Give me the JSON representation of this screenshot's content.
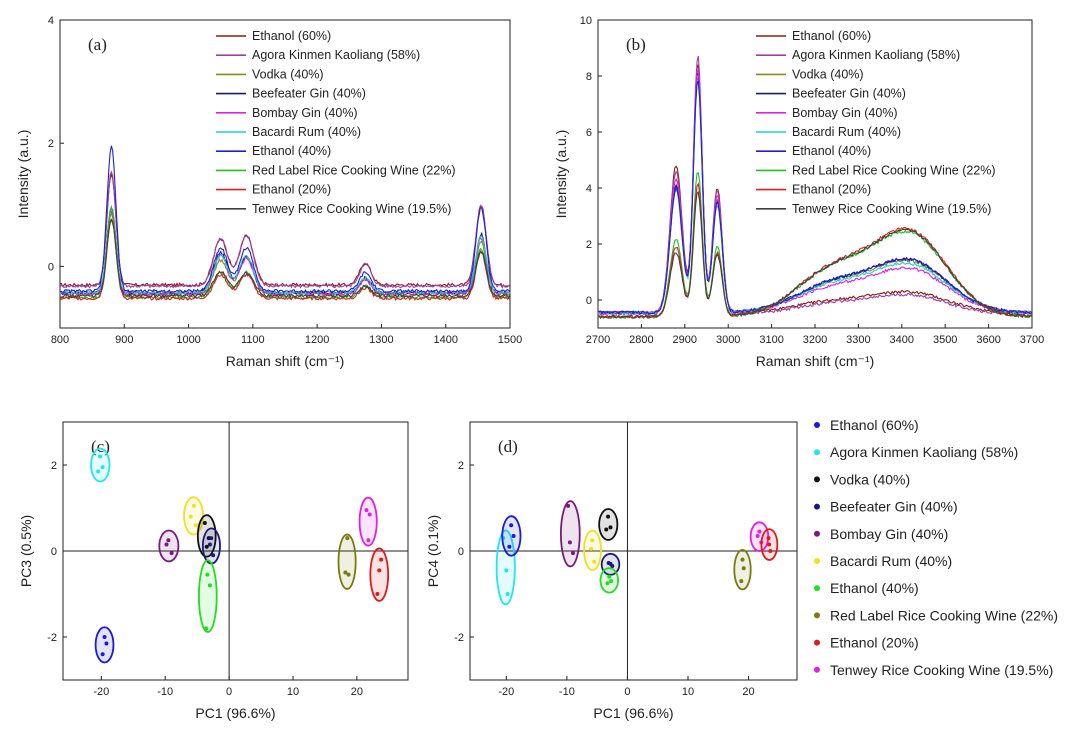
{
  "figure": {
    "series_colors": {
      "Ethanol (60%)": "#8b1a1a",
      "Agora Kinmen Kaoliang (58%)": "#a040a0",
      "Vodka (40%)": "#8a8a1a",
      "Beefeater Gin (40%)": "#1a1a6e",
      "Bombay Gin (40%)": "#e020e0",
      "Bacardi Rum (40%)": "#20d0d0",
      "Ethanol (40%)": "#2020d0",
      "Red Label Rice Cooking Wine (22%)": "#20c020",
      "Ethanol (20%)": "#e02020",
      "Tenwey Rice Cooking Wine (19.5%)": "#404040"
    },
    "pca_colors": {
      "Ethanol (60%)": "#1a1adc",
      "Agora Kinmen Kaoliang (58%)": "#22e6ee",
      "Vodka (40%)": "#111111",
      "Beefeater Gin (40%)": "#1a1a7a",
      "Bombay Gin (40%)": "#7a1a7a",
      "Bacardi Rum (40%)": "#f0e020",
      "Ethanol (40%)": "#22dd22",
      "Red Label Rice Cooking Wine (22%)": "#7a7a10",
      "Ethanol (20%)": "#e01a1a",
      "Tenwey Rice Cooking Wine (19.5%)": "#e020e0"
    }
  },
  "chart_data": [
    {
      "panel": "(a)",
      "type": "line",
      "xlabel": "Raman shift (cm⁻¹)",
      "ylabel": "Intensity (a.u.)",
      "xlim": [
        800,
        1500
      ],
      "ylim": [
        -1.0,
        4.0
      ],
      "xticks": [
        800,
        900,
        1000,
        1100,
        1200,
        1300,
        1400,
        1500
      ],
      "yticks": [
        0,
        2,
        4
      ],
      "legend_position": "top-right",
      "legend": [
        "Ethanol (60%)",
        "Agora Kinmen Kaoliang (58%)",
        "Vodka (40%)",
        "Beefeater Gin (40%)",
        "Bombay Gin (40%)",
        "Bacardi Rum (40%)",
        "Ethanol (40%)",
        "Red Label Rice Cooking Wine (22%)",
        "Ethanol (20%)",
        "Tenwey Rice Cooking Wine (19.5%)"
      ],
      "peak_positions": [
        880,
        1050,
        1090,
        1275,
        1455
      ],
      "series": [
        {
          "name": "Ethanol (60%)",
          "baseline": -0.3,
          "peaks": [
            1.8,
            0.75,
            0.8,
            0.35,
            1.3
          ]
        },
        {
          "name": "Agora Kinmen Kaoliang (58%)",
          "baseline": -0.32,
          "peaks": [
            1.85,
            0.78,
            0.82,
            0.36,
            1.3
          ]
        },
        {
          "name": "Vodka (40%)",
          "baseline": -0.45,
          "peaks": [
            1.3,
            0.55,
            0.6,
            0.25,
            0.85
          ]
        },
        {
          "name": "Beefeater Gin (40%)",
          "baseline": -0.43,
          "peaks": [
            1.4,
            0.65,
            0.58,
            0.24,
            0.95
          ]
        },
        {
          "name": "Bombay Gin (40%)",
          "baseline": -0.44,
          "peaks": [
            1.35,
            0.62,
            0.57,
            0.22,
            0.9
          ]
        },
        {
          "name": "Bacardi Rum (40%)",
          "baseline": -0.42,
          "peaks": [
            1.38,
            0.6,
            0.6,
            0.23,
            0.92
          ]
        },
        {
          "name": "Ethanol (40%)",
          "baseline": -0.4,
          "peaks": [
            2.35,
            0.7,
            0.7,
            0.3,
            1.35
          ]
        },
        {
          "name": "Red Label Rice Cooking Wine (22%)",
          "baseline": -0.5,
          "peaks": [
            1.45,
            0.4,
            0.4,
            0.18,
            0.8
          ]
        },
        {
          "name": "Ethanol (20%)",
          "baseline": -0.52,
          "peaks": [
            1.3,
            0.38,
            0.38,
            0.17,
            0.75
          ]
        },
        {
          "name": "Tenwey Rice Cooking Wine (19.5%)",
          "baseline": -0.48,
          "peaks": [
            1.25,
            0.4,
            0.38,
            0.16,
            0.72
          ]
        }
      ]
    },
    {
      "panel": "(b)",
      "type": "line",
      "xlabel": "Raman shift (cm⁻¹)",
      "ylabel": "Intensity (a.u.)",
      "xlim": [
        2700,
        3700
      ],
      "ylim": [
        -1.0,
        10.0
      ],
      "xticks": [
        2700,
        2800,
        2900,
        3000,
        3100,
        3200,
        3300,
        3400,
        3500,
        3600,
        3700
      ],
      "yticks": [
        0,
        2,
        4,
        6,
        8,
        10
      ],
      "legend_position": "top-right",
      "legend": [
        "Ethanol (60%)",
        "Agora Kinmen Kaoliang (58%)",
        "Vodka (40%)",
        "Beefeater Gin (40%)",
        "Bombay Gin (40%)",
        "Bacardi Rum (40%)",
        "Ethanol (40%)",
        "Red Label Rice Cooking Wine (22%)",
        "Ethanol (20%)",
        "Tenwey Rice Cooking Wine (19.5%)"
      ],
      "peak_positions": [
        2880,
        2930,
        2975
      ],
      "series": [
        {
          "name": "Ethanol (60%)",
          "ch_peaks": [
            4.8,
            8.4,
            4.0
          ],
          "oh_peak": 0.5,
          "baseline": -0.45
        },
        {
          "name": "Agora Kinmen Kaoliang (58%)",
          "ch_peaks": [
            4.6,
            8.7,
            3.9
          ],
          "oh_peak": 0.45,
          "baseline": -0.5
        },
        {
          "name": "Vodka (40%)",
          "ch_peaks": [
            4.0,
            8.0,
            3.6
          ],
          "oh_peak": 1.55,
          "baseline": -0.45
        },
        {
          "name": "Beefeater Gin (40%)",
          "ch_peaks": [
            4.1,
            8.2,
            3.5
          ],
          "oh_peak": 1.6,
          "baseline": -0.45
        },
        {
          "name": "Bombay Gin (40%)",
          "ch_peaks": [
            4.3,
            8.3,
            3.7
          ],
          "oh_peak": 1.3,
          "baseline": -0.45
        },
        {
          "name": "Bacardi Rum (40%)",
          "ch_peaks": [
            3.9,
            7.8,
            3.4
          ],
          "oh_peak": 1.45,
          "baseline": -0.45
        },
        {
          "name": "Ethanol (40%)",
          "ch_peaks": [
            4.0,
            7.9,
            3.5
          ],
          "oh_peak": 1.6,
          "baseline": -0.45
        },
        {
          "name": "Red Label Rice Cooking Wine (22%)",
          "ch_peaks": [
            2.2,
            4.6,
            1.9
          ],
          "oh_peak": 2.65,
          "baseline": -0.6
        },
        {
          "name": "Ethanol (20%)",
          "ch_peaks": [
            1.9,
            4.2,
            1.7
          ],
          "oh_peak": 2.75,
          "baseline": -0.6
        },
        {
          "name": "Tenwey Rice Cooking Wine (19.5%)",
          "ch_peaks": [
            1.7,
            3.9,
            1.6
          ],
          "oh_peak": 2.7,
          "baseline": -0.6
        }
      ]
    },
    {
      "panel": "(c)",
      "type": "scatter",
      "xlabel": "PC1 (96.6%)",
      "ylabel": "PC3 (0.5%)",
      "xlim": [
        -26,
        28
      ],
      "ylim": [
        -3.0,
        3.0
      ],
      "xticks": [
        -20,
        -10,
        0,
        10,
        20
      ],
      "yticks": [
        -2,
        0,
        2
      ],
      "groups": [
        {
          "name": "Agora Kinmen Kaoliang (58%)",
          "points": [
            [
              -20.2,
              2.2
            ],
            [
              -20.5,
              1.85
            ],
            [
              -19.8,
              1.95
            ]
          ]
        },
        {
          "name": "Ethanol (60%)",
          "points": [
            [
              -19.5,
              -2.0
            ],
            [
              -19.8,
              -2.4
            ],
            [
              -19.2,
              -2.15
            ]
          ]
        },
        {
          "name": "Bombay Gin (40%)",
          "points": [
            [
              -9.5,
              0.25
            ],
            [
              -9.0,
              -0.05
            ],
            [
              -9.8,
              0.15
            ]
          ]
        },
        {
          "name": "Bacardi Rum (40%)",
          "points": [
            [
              -5.5,
              1.05
            ],
            [
              -6.0,
              0.8
            ],
            [
              -5.2,
              0.6
            ]
          ]
        },
        {
          "name": "Vodka (40%)",
          "points": [
            [
              -3.8,
              0.65
            ],
            [
              -3.2,
              0.3
            ],
            [
              -3.5,
              0.1
            ]
          ]
        },
        {
          "name": "Beefeater Gin (40%)",
          "points": [
            [
              -2.8,
              0.3
            ],
            [
              -2.5,
              -0.1
            ],
            [
              -3.0,
              0.15
            ]
          ]
        },
        {
          "name": "Ethanol (40%)",
          "points": [
            [
              -3.0,
              -0.8
            ],
            [
              -3.4,
              -0.55
            ],
            [
              -3.6,
              -1.8
            ]
          ]
        },
        {
          "name": "Red Label Rice Cooking Wine (22%)",
          "points": [
            [
              18.5,
              0.3
            ],
            [
              18.2,
              -0.5
            ],
            [
              18.7,
              -0.55
            ]
          ]
        },
        {
          "name": "Tenwey Rice Cooking Wine (19.5%)",
          "points": [
            [
              21.5,
              0.95
            ],
            [
              22.0,
              0.85
            ],
            [
              21.8,
              0.25
            ]
          ]
        },
        {
          "name": "Ethanol (20%)",
          "points": [
            [
              23.5,
              -0.45
            ],
            [
              23.2,
              -1.0
            ],
            [
              23.8,
              -0.2
            ]
          ]
        }
      ]
    },
    {
      "panel": "(d)",
      "type": "scatter",
      "xlabel": "PC1 (96.6%)",
      "ylabel": "PC4 (0.1%)",
      "xlim": [
        -26,
        28
      ],
      "ylim": [
        -3.0,
        3.0
      ],
      "xticks": [
        -20,
        -10,
        0,
        10,
        20
      ],
      "yticks": [
        -2,
        0,
        2
      ],
      "groups": [
        {
          "name": "Agora Kinmen Kaoliang (58%)",
          "points": [
            [
              -20.5,
              0.3
            ],
            [
              -20.0,
              -0.45
            ],
            [
              -19.8,
              -1.0
            ]
          ]
        },
        {
          "name": "Ethanol (60%)",
          "points": [
            [
              -19.2,
              0.6
            ],
            [
              -18.8,
              0.35
            ],
            [
              -19.5,
              0.1
            ]
          ]
        },
        {
          "name": "Bombay Gin (40%)",
          "points": [
            [
              -9.8,
              1.05
            ],
            [
              -9.5,
              0.2
            ],
            [
              -9.0,
              -0.05
            ]
          ]
        },
        {
          "name": "Bacardi Rum (40%)",
          "points": [
            [
              -5.8,
              0.25
            ],
            [
              -5.5,
              -0.25
            ],
            [
              -6.0,
              0.05
            ]
          ]
        },
        {
          "name": "Vodka (40%)",
          "points": [
            [
              -3.2,
              0.8
            ],
            [
              -2.8,
              0.55
            ],
            [
              -3.5,
              0.5
            ]
          ]
        },
        {
          "name": "Beefeater Gin (40%)",
          "points": [
            [
              -2.8,
              -0.3
            ],
            [
              -2.5,
              -0.35
            ],
            [
              -3.1,
              -0.28
            ]
          ]
        },
        {
          "name": "Ethanol (40%)",
          "points": [
            [
              -3.0,
              -0.6
            ],
            [
              -3.3,
              -0.75
            ],
            [
              -2.7,
              -0.7
            ]
          ]
        },
        {
          "name": "Red Label Rice Cooking Wine (22%)",
          "points": [
            [
              19.0,
              -0.2
            ],
            [
              18.8,
              -0.7
            ],
            [
              19.2,
              -0.4
            ]
          ]
        },
        {
          "name": "Tenwey Rice Cooking Wine (19.5%)",
          "points": [
            [
              21.8,
              0.45
            ],
            [
              22.1,
              0.2
            ],
            [
              21.5,
              0.35
            ]
          ]
        },
        {
          "name": "Ethanol (20%)",
          "points": [
            [
              23.3,
              0.3
            ],
            [
              23.6,
              0.0
            ],
            [
              23.4,
              0.15
            ]
          ]
        }
      ]
    }
  ],
  "pca_legend": [
    "Ethanol (60%)",
    "Agora Kinmen Kaoliang (58%)",
    "Vodka (40%)",
    "Beefeater Gin (40%)",
    "Bombay Gin (40%)",
    "Bacardi Rum (40%)",
    "Ethanol (40%)",
    "Red Label Rice Cooking Wine (22%)",
    "Ethanol (20%)",
    "Tenwey Rice Cooking Wine (19.5%)"
  ]
}
